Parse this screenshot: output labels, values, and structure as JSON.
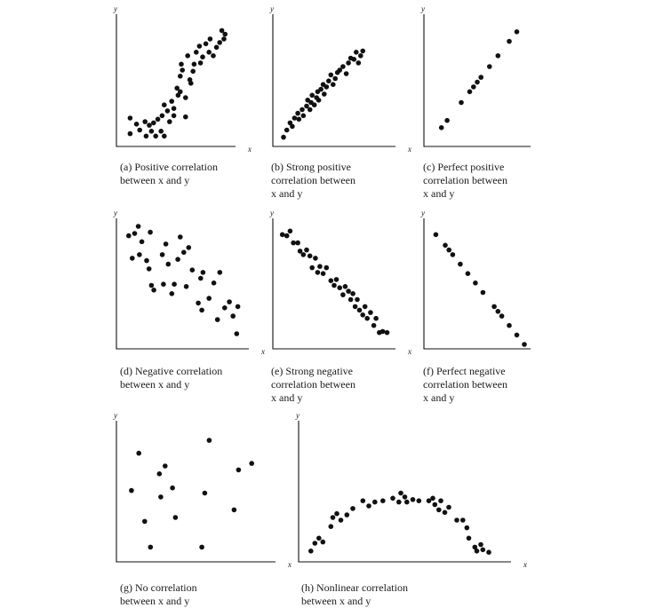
{
  "chart_data": [
    {
      "id": "a",
      "type": "scatter",
      "caption_label": "(a)",
      "caption_text": "Positive correlation\nbetween x and y",
      "xlabel": "x",
      "ylabel": "y",
      "xlim": [
        0,
        10
      ],
      "ylim": [
        0,
        10
      ],
      "points": [
        [
          0.7,
          2
        ],
        [
          0.7,
          0.7
        ],
        [
          1.3,
          1.5
        ],
        [
          1.6,
          1
        ],
        [
          2.1,
          1.7
        ],
        [
          2.2,
          0.5
        ],
        [
          2.5,
          1.4
        ],
        [
          2.7,
          0.9
        ],
        [
          2.9,
          1.6
        ],
        [
          3.1,
          0.5
        ],
        [
          3.3,
          1.9
        ],
        [
          3.6,
          0.9
        ],
        [
          3.7,
          2.2
        ],
        [
          3.9,
          0.5
        ],
        [
          3.9,
          3.1
        ],
        [
          4.2,
          2.6
        ],
        [
          4.4,
          1.7
        ],
        [
          4.6,
          3.4
        ],
        [
          4.8,
          2.2
        ],
        [
          4.8,
          2.8
        ],
        [
          5.1,
          4.5
        ],
        [
          5.2,
          3.9
        ],
        [
          5.4,
          4.2
        ],
        [
          5.4,
          5.5
        ],
        [
          5.5,
          6.5
        ],
        [
          5.6,
          6
        ],
        [
          5.9,
          3.7
        ],
        [
          5.9,
          2.1
        ],
        [
          6.1,
          7.2
        ],
        [
          6.3,
          5.2
        ],
        [
          6.4,
          4.9
        ],
        [
          6.6,
          5.9
        ],
        [
          6.7,
          6.5
        ],
        [
          6.9,
          7.5
        ],
        [
          7.2,
          8
        ],
        [
          7.3,
          6.6
        ],
        [
          7.5,
          7.1
        ],
        [
          7.8,
          8.2
        ],
        [
          8.1,
          7.5
        ],
        [
          8.2,
          8.6
        ],
        [
          8.5,
          7.2
        ],
        [
          8.8,
          7.9
        ],
        [
          9.1,
          8.3
        ],
        [
          9.3,
          9.3
        ],
        [
          9.5,
          8.6
        ],
        [
          9.6,
          9
        ]
      ]
    },
    {
      "id": "b",
      "type": "scatter",
      "caption_label": "(b)",
      "caption_text": "Strong positive\ncorrelation between\nx and y",
      "xlabel": "x",
      "ylabel": "y",
      "xlim": [
        0,
        10
      ],
      "ylim": [
        0,
        10
      ],
      "points": [
        [
          0.4,
          0.4
        ],
        [
          0.7,
          1
        ],
        [
          1,
          1.6
        ],
        [
          1.2,
          1.3
        ],
        [
          1.4,
          2
        ],
        [
          1.7,
          2.4
        ],
        [
          1.8,
          1.9
        ],
        [
          2.1,
          2.7
        ],
        [
          2.2,
          2.2
        ],
        [
          2.5,
          3
        ],
        [
          2.6,
          3.5
        ],
        [
          2.8,
          2.7
        ],
        [
          2.9,
          3.3
        ],
        [
          3,
          3.9
        ],
        [
          3.2,
          3.1
        ],
        [
          3.4,
          3.7
        ],
        [
          3.5,
          4.2
        ],
        [
          3.6,
          3.5
        ],
        [
          3.8,
          4.4
        ],
        [
          4,
          4.8
        ],
        [
          4.1,
          4
        ],
        [
          4.3,
          4.6
        ],
        [
          4.5,
          5.1
        ],
        [
          4.7,
          5.6
        ],
        [
          4.9,
          4.8
        ],
        [
          5.1,
          5.3
        ],
        [
          5.3,
          5.8
        ],
        [
          5.5,
          6
        ],
        [
          5.8,
          6.3
        ],
        [
          6.1,
          5.7
        ],
        [
          6.3,
          6.6
        ],
        [
          6.5,
          7
        ],
        [
          6.8,
          6.9
        ],
        [
          7,
          7.5
        ],
        [
          7.2,
          6.6
        ],
        [
          7.4,
          7.2
        ],
        [
          7.6,
          7.6
        ]
      ]
    },
    {
      "id": "c",
      "type": "scatter",
      "caption_label": "(c)",
      "caption_text": "Perfect positive\ncorrelation between\nx and y",
      "xlabel": "",
      "ylabel": "y",
      "xlim": [
        0,
        10
      ],
      "ylim": [
        0,
        10
      ],
      "points": [
        [
          1.2,
          1.2
        ],
        [
          1.8,
          1.8
        ],
        [
          3.3,
          3.3
        ],
        [
          4.2,
          4.2
        ],
        [
          4.6,
          4.6
        ],
        [
          5,
          5
        ],
        [
          5.4,
          5.4
        ],
        [
          6.3,
          6.3
        ],
        [
          7.2,
          7.2
        ],
        [
          8.4,
          8.4
        ],
        [
          9.2,
          9.2
        ]
      ]
    },
    {
      "id": "d",
      "type": "scatter",
      "caption_label": "(d)",
      "caption_text": "Negative correlation\nbetween x and y",
      "xlabel": "x",
      "ylabel": "y",
      "xlim": [
        0,
        10
      ],
      "ylim": [
        0,
        10
      ],
      "points": [
        [
          0.5,
          9.2
        ],
        [
          1,
          9.4
        ],
        [
          1.3,
          10
        ],
        [
          1.4,
          7.6
        ],
        [
          1.6,
          8.7
        ],
        [
          0.8,
          7.3
        ],
        [
          2,
          7.1
        ],
        [
          2.3,
          9.5
        ],
        [
          2.2,
          6.4
        ],
        [
          2.4,
          5
        ],
        [
          2.6,
          4.6
        ],
        [
          3.3,
          7.6
        ],
        [
          3.4,
          5.1
        ],
        [
          3.6,
          8.5
        ],
        [
          3.8,
          6.8
        ],
        [
          4.1,
          4.3
        ],
        [
          4.3,
          5.1
        ],
        [
          4.6,
          7.2
        ],
        [
          4.8,
          9.1
        ],
        [
          5.1,
          7.8
        ],
        [
          5.3,
          4.9
        ],
        [
          5.5,
          8.2
        ],
        [
          5.8,
          6.3
        ],
        [
          6.3,
          3.5
        ],
        [
          6.5,
          5.6
        ],
        [
          6.6,
          2.9
        ],
        [
          6.7,
          6.1
        ],
        [
          7.2,
          3.9
        ],
        [
          7.6,
          5.2
        ],
        [
          7.9,
          2.1
        ],
        [
          8.1,
          6.1
        ],
        [
          8.5,
          3.1
        ],
        [
          8.9,
          3.6
        ],
        [
          9.2,
          2.4
        ],
        [
          9.6,
          3.2
        ],
        [
          9.5,
          0.9
        ]
      ]
    },
    {
      "id": "e",
      "type": "scatter",
      "caption_label": "(e)",
      "caption_text": "Strong negative\ncorrelation between\nx and y",
      "xlabel": "x",
      "ylabel": "y",
      "xlim": [
        0,
        10
      ],
      "ylim": [
        0,
        10
      ],
      "points": [
        [
          0.3,
          9.3
        ],
        [
          0.7,
          9.2
        ],
        [
          1,
          9.6
        ],
        [
          1.3,
          8.6
        ],
        [
          1.7,
          8.6
        ],
        [
          1.9,
          7.9
        ],
        [
          2.2,
          7.6
        ],
        [
          2.5,
          8
        ],
        [
          2.8,
          7.5
        ],
        [
          3,
          6.5
        ],
        [
          3.3,
          7.3
        ],
        [
          3.5,
          6.1
        ],
        [
          3.7,
          6.6
        ],
        [
          4,
          6
        ],
        [
          4.3,
          6.5
        ],
        [
          4.7,
          5.4
        ],
        [
          5,
          5
        ],
        [
          5.2,
          5.5
        ],
        [
          5.5,
          4.8
        ],
        [
          5.8,
          4.2
        ],
        [
          6,
          4.9
        ],
        [
          6.3,
          4.5
        ],
        [
          6.5,
          3.8
        ],
        [
          6.7,
          4.3
        ],
        [
          6.9,
          3.2
        ],
        [
          7.1,
          3.8
        ],
        [
          7.3,
          2.9
        ],
        [
          7.6,
          2.5
        ],
        [
          7.8,
          3.2
        ],
        [
          8,
          2.2
        ],
        [
          8.3,
          2.7
        ],
        [
          8.6,
          1.6
        ],
        [
          8.8,
          2.2
        ],
        [
          9.1,
          1
        ],
        [
          9.4,
          1.1
        ],
        [
          9.8,
          1
        ]
      ]
    },
    {
      "id": "f",
      "type": "scatter",
      "caption_label": "(f)",
      "caption_text": "Perfect negative\ncorrelation between\nx and y",
      "xlabel": "",
      "ylabel": "y",
      "xlim": [
        0,
        10
      ],
      "ylim": [
        0,
        10
      ],
      "points": [
        [
          0.6,
          9.3
        ],
        [
          1.6,
          8.4
        ],
        [
          2,
          8
        ],
        [
          2.4,
          7.6
        ],
        [
          3.2,
          6.8
        ],
        [
          4,
          6
        ],
        [
          4.8,
          5.2
        ],
        [
          5.6,
          4.4
        ],
        [
          6.8,
          3.2
        ],
        [
          7.2,
          2.8
        ],
        [
          7.6,
          2.4
        ],
        [
          8.4,
          1.6
        ],
        [
          9.2,
          0.8
        ],
        [
          10,
          0
        ]
      ]
    },
    {
      "id": "g",
      "type": "scatter",
      "caption_label": "(g)",
      "caption_text": "No correlation\nbetween x and y",
      "xlabel": "x",
      "ylabel": "y",
      "xlim": [
        0,
        10
      ],
      "ylim": [
        0,
        10
      ],
      "points": [
        [
          0.6,
          5.2
        ],
        [
          1.1,
          8.1
        ],
        [
          1.5,
          2.8
        ],
        [
          1.9,
          0.8
        ],
        [
          2.5,
          6.5
        ],
        [
          2.6,
          4.7
        ],
        [
          2.9,
          7.1
        ],
        [
          3.4,
          5.4
        ],
        [
          3.6,
          3.1
        ],
        [
          5.4,
          0.8
        ],
        [
          5.6,
          5
        ],
        [
          5.9,
          9.1
        ],
        [
          7.6,
          3.7
        ],
        [
          7.9,
          6.8
        ],
        [
          8.8,
          7.3
        ]
      ]
    },
    {
      "id": "h",
      "type": "scatter",
      "caption_label": "(h)",
      "caption_text": "Nonlinear correlation\nbetween x and y",
      "xlabel": "x",
      "ylabel": "y",
      "xlim": [
        0,
        10
      ],
      "ylim": [
        0,
        10
      ],
      "points": [
        [
          0.3,
          0.5
        ],
        [
          0.5,
          1.1
        ],
        [
          0.7,
          1.5
        ],
        [
          0.9,
          1.2
        ],
        [
          1.3,
          2.4
        ],
        [
          1.4,
          3.1
        ],
        [
          1.6,
          3.4
        ],
        [
          1.8,
          2.9
        ],
        [
          2.1,
          3.3
        ],
        [
          2.4,
          3.8
        ],
        [
          2.9,
          4.4
        ],
        [
          3.2,
          4
        ],
        [
          3.5,
          4.3
        ],
        [
          3.9,
          4.4
        ],
        [
          4.4,
          4.6
        ],
        [
          4.7,
          4.3
        ],
        [
          4.8,
          5
        ],
        [
          5,
          4.7
        ],
        [
          5.1,
          4.3
        ],
        [
          5.4,
          4.5
        ],
        [
          5.7,
          4.4
        ],
        [
          6.2,
          4.4
        ],
        [
          6.4,
          4.6
        ],
        [
          6.5,
          4.1
        ],
        [
          6.7,
          3.7
        ],
        [
          6.8,
          4.4
        ],
        [
          7,
          3.5
        ],
        [
          7.2,
          3.9
        ],
        [
          7.6,
          2.9
        ],
        [
          7.9,
          2.9
        ],
        [
          8.1,
          2.3
        ],
        [
          8.2,
          1.5
        ],
        [
          8.5,
          0.8
        ],
        [
          8.6,
          0.5
        ],
        [
          8.8,
          1
        ],
        [
          8.9,
          0.6
        ],
        [
          9.2,
          0.4
        ]
      ]
    }
  ]
}
